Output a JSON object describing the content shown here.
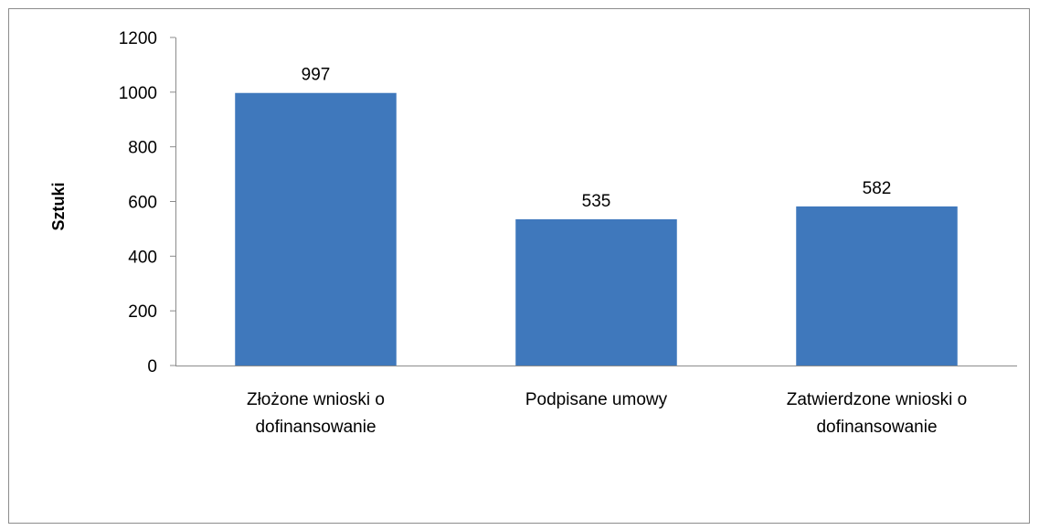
{
  "chart_data": {
    "type": "bar",
    "title": "",
    "xlabel": "",
    "ylabel": "Sztuki",
    "ylim": [
      0,
      1200
    ],
    "yticks": [
      0,
      200,
      400,
      600,
      800,
      1000,
      1200
    ],
    "grid": false,
    "legend": "none",
    "bar_color": "#3f78bc",
    "categories": [
      [
        "Złożone wnioski o",
        "dofinansowanie"
      ],
      [
        "Podpisane umowy"
      ],
      [
        "Zatwierdzone wnioski o",
        "dofinansowanie"
      ]
    ],
    "values": [
      997,
      535,
      582
    ],
    "data_labels": [
      "997",
      "535",
      "582"
    ]
  }
}
